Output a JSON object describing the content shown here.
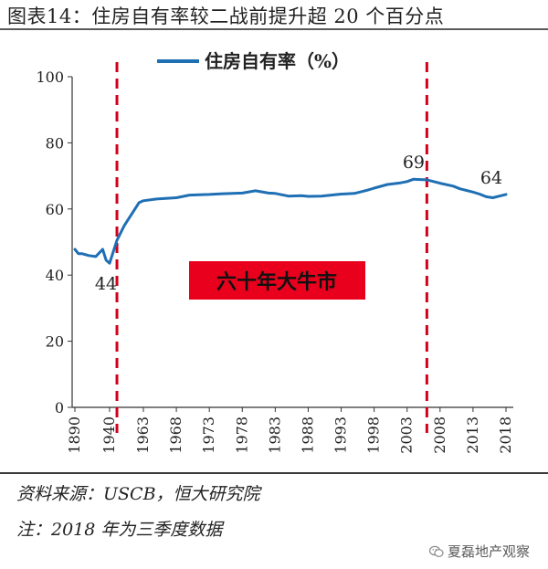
{
  "header": {
    "title": "图表14：住房自有率较二战前提升超 20 个百分点"
  },
  "footer": {
    "source": "资料来源：USCB，恒大研究院",
    "note": "注：2018 年为三季度数据",
    "watermark": "夏磊地产观察",
    "watermark_icon": "wechat-icon"
  },
  "chart_data": {
    "type": "line",
    "title": "",
    "xlabel": "",
    "ylabel": "",
    "ylim": [
      0,
      100
    ],
    "yticks": [
      0,
      20,
      40,
      60,
      80,
      100
    ],
    "ytick_labels": [
      "0",
      "20",
      "40",
      "60",
      "80",
      "100"
    ],
    "xtick_labels": [
      "1890",
      "1940",
      "1963",
      "1968",
      "1973",
      "1978",
      "1983",
      "1988",
      "1993",
      "1998",
      "2003",
      "2008",
      "2013",
      "2018"
    ],
    "legend": {
      "label": "住房自有率（%）",
      "position": "top"
    },
    "grid": false,
    "series": [
      {
        "name": "住房自有率（%）",
        "color": "#1f6fb4",
        "points": [
          {
            "x": "1890",
            "y": 47.8
          },
          {
            "x": "1895",
            "y": 46.5
          },
          {
            "x": "1900",
            "y": 46.5
          },
          {
            "x": "1910",
            "y": 45.9
          },
          {
            "x": "1920",
            "y": 45.6
          },
          {
            "x": "1930",
            "y": 47.8
          },
          {
            "x": "1935",
            "y": 44.5
          },
          {
            "x": "1940",
            "y": 43.6
          },
          {
            "x": "1945",
            "y": 50.5
          },
          {
            "x": "1950",
            "y": 55.0
          },
          {
            "x": "1960",
            "y": 61.9
          },
          {
            "x": "1963",
            "y": 62.5
          },
          {
            "x": "1965",
            "y": 63.0
          },
          {
            "x": "1968",
            "y": 63.4
          },
          {
            "x": "1970",
            "y": 64.2
          },
          {
            "x": "1973",
            "y": 64.4
          },
          {
            "x": "1975",
            "y": 64.6
          },
          {
            "x": "1978",
            "y": 64.8
          },
          {
            "x": "1980",
            "y": 65.5
          },
          {
            "x": "1982",
            "y": 64.8
          },
          {
            "x": "1983",
            "y": 64.7
          },
          {
            "x": "1985",
            "y": 63.9
          },
          {
            "x": "1987",
            "y": 64.0
          },
          {
            "x": "1988",
            "y": 63.8
          },
          {
            "x": "1990",
            "y": 63.9
          },
          {
            "x": "1993",
            "y": 64.5
          },
          {
            "x": "1995",
            "y": 64.7
          },
          {
            "x": "1997",
            "y": 65.7
          },
          {
            "x": "1998",
            "y": 66.3
          },
          {
            "x": "2000",
            "y": 67.4
          },
          {
            "x": "2002",
            "y": 67.9
          },
          {
            "x": "2003",
            "y": 68.3
          },
          {
            "x": "2004",
            "y": 69.0
          },
          {
            "x": "2005",
            "y": 68.9
          },
          {
            "x": "2006",
            "y": 68.8
          },
          {
            "x": "2008",
            "y": 67.8
          },
          {
            "x": "2010",
            "y": 66.9
          },
          {
            "x": "2011",
            "y": 66.1
          },
          {
            "x": "2013",
            "y": 65.1
          },
          {
            "x": "2014",
            "y": 64.5
          },
          {
            "x": "2015",
            "y": 63.7
          },
          {
            "x": "2016",
            "y": 63.4
          },
          {
            "x": "2017",
            "y": 63.9
          },
          {
            "x": "2018",
            "y": 64.4
          }
        ]
      }
    ],
    "reference_lines": [
      {
        "type": "vertical",
        "x": "1945",
        "style": "dashed",
        "color": "#d0021b"
      },
      {
        "type": "vertical",
        "x": "2006",
        "style": "dashed",
        "color": "#d0021b"
      }
    ],
    "annotations": [
      {
        "text": "44",
        "x": "1940",
        "y": 43.6
      },
      {
        "text": "69",
        "x": "2004",
        "y": 69.0
      },
      {
        "text": "64",
        "x": "2018",
        "y": 64.4
      },
      {
        "text": "六十年大牛市",
        "style": "box",
        "fill": "#e8001c"
      }
    ]
  }
}
